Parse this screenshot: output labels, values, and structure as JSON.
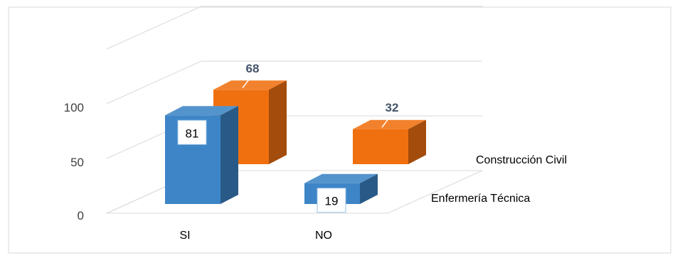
{
  "chart_data": {
    "type": "bar",
    "title": "",
    "xlabel": "",
    "ylabel": "",
    "categories": [
      "SI",
      "NO"
    ],
    "series": [
      {
        "name": "Enfermería Técnica",
        "values": [
          81,
          19
        ],
        "color": "#3d85c6"
      },
      {
        "name": "Construcción Civil",
        "values": [
          68,
          32
        ],
        "color": "#f07010"
      }
    ],
    "y_ticks": [
      "0",
      "50",
      "100"
    ],
    "ylim": [
      0,
      150
    ],
    "grid": true,
    "style": "3d-column"
  }
}
